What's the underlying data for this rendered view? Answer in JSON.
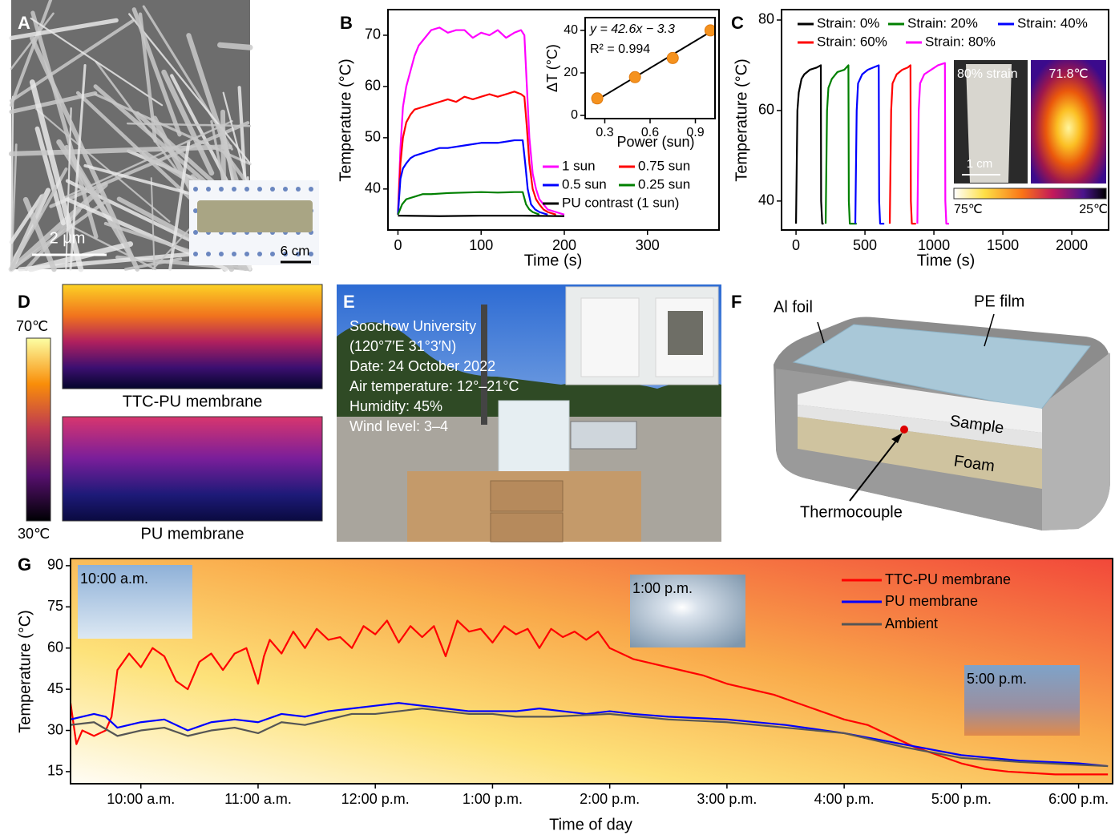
{
  "panels": {
    "A": {
      "label": "A",
      "scale_bar": "2 μm",
      "inset_scale_bar": "6 cm"
    },
    "D": {
      "label": "D",
      "colorbar_max": "70℃",
      "colorbar_min": "30℃",
      "top_caption": "TTC-PU membrane",
      "bottom_caption": "PU membrane"
    },
    "E": {
      "label": "E",
      "lines": [
        "Soochow University",
        "(120°7′E 31°3′N)",
        "Date: 24 October 2022",
        "Air temperature: 12°–21°C",
        "Humidity: 45%",
        "Wind level: 3–4"
      ]
    },
    "F": {
      "label": "F",
      "al_foil": "Al foil",
      "pe_film": "PE film",
      "sample": "Sample",
      "foam": "Foam",
      "thermocouple": "Thermocouple"
    }
  },
  "chart_data": [
    {
      "type": "line",
      "label": "B",
      "x_label": "Time (s)",
      "y_label": "Temperature (°C)",
      "xlim": [
        -12,
        386
      ],
      "ylim": [
        32,
        75
      ],
      "xticks": [
        0,
        100,
        200,
        300
      ],
      "yticks": [
        40,
        50,
        60,
        70
      ],
      "series": [
        {
          "name": "1 sun",
          "color": "#ff00ff",
          "x": [
            0,
            3,
            6,
            10,
            15,
            20,
            25,
            30,
            40,
            50,
            60,
            70,
            80,
            90,
            100,
            110,
            120,
            130,
            140,
            148,
            152,
            155,
            158,
            162,
            166,
            170,
            175,
            180,
            190,
            200
          ],
          "values": [
            35,
            48,
            56,
            60,
            63,
            66,
            68,
            69,
            71,
            71.5,
            70.5,
            71,
            71,
            69.5,
            70.5,
            70,
            71,
            69.5,
            70.5,
            71,
            70,
            60,
            50,
            43,
            40,
            38,
            37,
            36,
            35.5,
            35
          ]
        },
        {
          "name": "0.75 sun",
          "color": "#ff0000",
          "x": [
            0,
            3,
            6,
            10,
            15,
            20,
            30,
            40,
            50,
            60,
            70,
            80,
            90,
            100,
            110,
            120,
            130,
            140,
            148,
            152,
            155,
            158,
            162,
            166,
            170,
            175,
            180,
            190
          ],
          "values": [
            35,
            45,
            50,
            53,
            54.5,
            55.5,
            56,
            56.5,
            57,
            57.5,
            57,
            58,
            57.5,
            58,
            58.5,
            58,
            58.5,
            59,
            58.5,
            58,
            52,
            45,
            40,
            38,
            37,
            36,
            35.5,
            35
          ]
        },
        {
          "name": "0.5 sun",
          "color": "#0000ff",
          "x": [
            0,
            3,
            6,
            10,
            15,
            20,
            30,
            40,
            50,
            60,
            80,
            100,
            120,
            140,
            150,
            153,
            156,
            160,
            165,
            170,
            180
          ],
          "values": [
            35,
            42,
            44,
            45,
            46,
            46.5,
            47,
            47.5,
            48,
            48,
            48.5,
            49,
            49,
            49.5,
            49.5,
            45,
            40,
            37,
            36,
            35.5,
            35
          ]
        },
        {
          "name": "0.25 sun",
          "color": "#008000",
          "x": [
            0,
            5,
            10,
            20,
            30,
            40,
            60,
            80,
            100,
            120,
            140,
            150,
            154,
            158,
            162,
            170
          ],
          "values": [
            35,
            37,
            38,
            38.5,
            39,
            39,
            39.2,
            39.3,
            39.4,
            39.3,
            39.4,
            39.4,
            37,
            36,
            35.5,
            35
          ]
        },
        {
          "name": "PU contrast (1 sun)",
          "color": "#000000",
          "x": [
            0,
            50,
            100,
            150,
            200
          ],
          "values": [
            34.8,
            34.7,
            34.8,
            34.8,
            34.7
          ]
        }
      ]
    },
    {
      "type": "scatter",
      "label_equation": "y = 42.6x − 3.3",
      "label_r2": "R² = 0.994",
      "x_label": "Power (sun)",
      "y_label": "ΔT (°C)",
      "xlim": [
        0.17,
        1.03
      ],
      "ylim": [
        -1.5,
        46
      ],
      "xticks": [
        0.3,
        0.6,
        0.9
      ],
      "yticks": [
        0,
        20,
        40
      ],
      "x": [
        0.25,
        0.5,
        0.75,
        1.0
      ],
      "values": [
        8,
        18,
        27,
        40
      ],
      "color": "#f5921e",
      "fit": {
        "slope": 42.6,
        "intercept": -3.3
      }
    },
    {
      "type": "line",
      "label": "C",
      "x_label": "Time (s)",
      "y_label": "Temperature (°C)",
      "xlim": [
        -105,
        2267
      ],
      "ylim": [
        33.6,
        82.3
      ],
      "xticks": [
        0,
        500,
        1000,
        1500,
        2000
      ],
      "yticks": [
        40,
        60,
        80
      ],
      "inset": {
        "photo_label": "80% strain",
        "scale_bar": "1 cm",
        "max_temp": "71.8℃",
        "colorbar_max": "75℃",
        "colorbar_min": "25℃"
      },
      "series": [
        {
          "name": "Strain: 0%",
          "color": "#000000",
          "x": [
            0,
            10,
            20,
            40,
            60,
            100,
            150,
            180,
            182,
            190,
            200
          ],
          "values": [
            35,
            60,
            64,
            67,
            68,
            69,
            69.5,
            70,
            40,
            35,
            35
          ]
        },
        {
          "name": "Strain: 20%",
          "color": "#008000",
          "x": [
            215,
            225,
            235,
            260,
            300,
            350,
            380,
            383,
            390,
            440
          ],
          "values": [
            35,
            60,
            65,
            67,
            68.5,
            69,
            70,
            40,
            35,
            35
          ]
        },
        {
          "name": "Strain: 40%",
          "color": "#0000ff",
          "x": [
            430,
            440,
            450,
            480,
            520,
            560,
            600,
            603,
            610,
            640
          ],
          "values": [
            35,
            60,
            66,
            68,
            69,
            69.5,
            70,
            40,
            35,
            35
          ]
        },
        {
          "name": "Strain: 60%",
          "color": "#ff0000",
          "x": [
            680,
            690,
            700,
            730,
            770,
            810,
            830,
            833,
            840,
            870
          ],
          "values": [
            35,
            60,
            66,
            68,
            69,
            69.5,
            70,
            40,
            35,
            35
          ]
        },
        {
          "name": "Strain: 80%",
          "color": "#ff00ff",
          "x": [
            880,
            890,
            900,
            930,
            980,
            1030,
            1080,
            1083,
            1090,
            1110
          ],
          "values": [
            35,
            60,
            66,
            68,
            69,
            70,
            70.5,
            40,
            35,
            35
          ]
        }
      ]
    },
    {
      "type": "line",
      "label": "G",
      "x_label": "Time of day",
      "y_label": "Temperature (°C)",
      "xlim": [
        9.4,
        18.29
      ],
      "ylim": [
        10.6,
        92.6
      ],
      "xticks": [
        {
          "value": 10,
          "label": "10:00 a.m."
        },
        {
          "value": 11,
          "label": "11:00 a.m."
        },
        {
          "value": 12,
          "label": "12:00 p.m."
        },
        {
          "value": 13,
          "label": "1:00 p.m."
        },
        {
          "value": 14,
          "label": "2:00 p.m."
        },
        {
          "value": 15,
          "label": "3:00 p.m."
        },
        {
          "value": 16,
          "label": "4:00 p.m."
        },
        {
          "value": 17,
          "label": "5:00 p.m."
        },
        {
          "value": 18,
          "label": "6:00 p.m."
        }
      ],
      "yticks": [
        15,
        30,
        45,
        60,
        75,
        90
      ],
      "inset_labels": [
        "10:00 a.m.",
        "1:00 p.m.",
        "5:00 p.m."
      ],
      "series": [
        {
          "name": "TTC-PU membrane",
          "color": "#ff0000",
          "x": [
            9.4,
            9.45,
            9.5,
            9.6,
            9.7,
            9.75,
            9.8,
            9.9,
            10.0,
            10.1,
            10.2,
            10.3,
            10.4,
            10.5,
            10.6,
            10.7,
            10.8,
            10.9,
            11.0,
            11.05,
            11.1,
            11.2,
            11.3,
            11.4,
            11.5,
            11.6,
            11.7,
            11.8,
            11.9,
            12.0,
            12.1,
            12.2,
            12.3,
            12.4,
            12.5,
            12.6,
            12.7,
            12.8,
            12.9,
            13.0,
            13.1,
            13.2,
            13.3,
            13.4,
            13.5,
            13.6,
            13.7,
            13.8,
            13.9,
            14.0,
            14.2,
            14.4,
            14.6,
            14.8,
            15.0,
            15.2,
            15.4,
            15.6,
            15.8,
            16.0,
            16.2,
            16.4,
            16.6,
            16.8,
            17.0,
            17.2,
            17.4,
            17.6,
            17.8,
            18.0,
            18.25
          ],
          "values": [
            40,
            25,
            30,
            28,
            30,
            35,
            52,
            58,
            53,
            60,
            57,
            48,
            45,
            55,
            58,
            52,
            58,
            60,
            47,
            57,
            63,
            58,
            66,
            60,
            67,
            63,
            64,
            60,
            68,
            65,
            70,
            62,
            68,
            64,
            68,
            57,
            70,
            66,
            67,
            62,
            68,
            65,
            67,
            60,
            67,
            64,
            66,
            63,
            66,
            60,
            56,
            54,
            52,
            50,
            47,
            45,
            43,
            40,
            37,
            34,
            32,
            28,
            24,
            21,
            18,
            16,
            15,
            14.5,
            14,
            14,
            14
          ]
        },
        {
          "name": "PU membrane",
          "color": "#0000ff",
          "x": [
            9.4,
            9.6,
            9.7,
            9.8,
            10.0,
            10.2,
            10.4,
            10.6,
            10.8,
            11.0,
            11.2,
            11.4,
            11.6,
            11.8,
            12.0,
            12.2,
            12.4,
            12.6,
            12.8,
            13.0,
            13.2,
            13.4,
            13.6,
            13.8,
            14.0,
            14.2,
            14.5,
            15.0,
            15.5,
            16.0,
            16.5,
            17.0,
            17.5,
            18.0,
            18.25
          ],
          "values": [
            34,
            36,
            35,
            31,
            33,
            34,
            30,
            33,
            34,
            33,
            36,
            35,
            37,
            38,
            39,
            40,
            39,
            38,
            37,
            37,
            37,
            38,
            37,
            36,
            37,
            36,
            35,
            34,
            32,
            29,
            25,
            21,
            19,
            18,
            17
          ]
        },
        {
          "name": "Ambient",
          "color": "#555555",
          "x": [
            9.4,
            9.6,
            9.8,
            10.0,
            10.2,
            10.4,
            10.6,
            10.8,
            11.0,
            11.2,
            11.4,
            11.6,
            11.8,
            12.0,
            12.2,
            12.4,
            12.6,
            12.8,
            13.0,
            13.2,
            13.5,
            14.0,
            14.5,
            15.0,
            15.5,
            16.0,
            16.5,
            17.0,
            17.5,
            18.0,
            18.25
          ],
          "values": [
            32,
            33,
            28,
            30,
            31,
            28,
            30,
            31,
            29,
            33,
            32,
            34,
            36,
            36,
            37,
            38,
            37,
            36,
            36,
            35,
            35,
            36,
            34,
            33,
            31,
            29,
            24,
            20,
            18.5,
            17.5,
            17
          ]
        }
      ]
    }
  ]
}
